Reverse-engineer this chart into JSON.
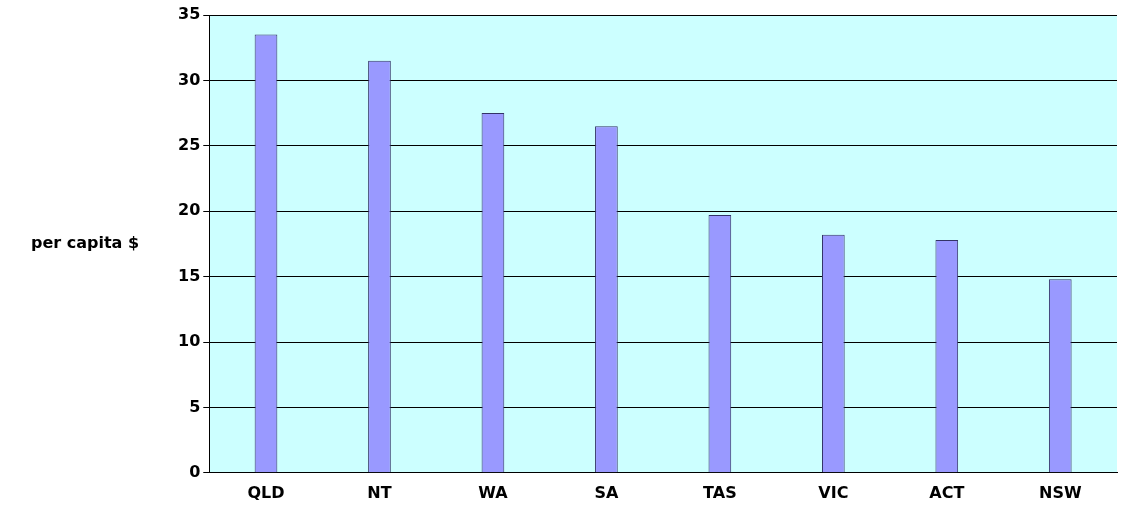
{
  "chart_data": {
    "type": "bar",
    "ylabel": "per capita $",
    "categories": [
      "QLD",
      "NT",
      "WA",
      "SA",
      "TAS",
      "VIC",
      "ACT",
      "NSW"
    ],
    "values": [
      33.5,
      31.5,
      27.5,
      26.5,
      19.7,
      18.2,
      17.8,
      14.8
    ],
    "color": "#9999ff",
    "ylim": [
      0,
      35
    ],
    "yticks": [
      0,
      5,
      10,
      15,
      20,
      25,
      30,
      35
    ],
    "grid": "y",
    "legend": false
  }
}
